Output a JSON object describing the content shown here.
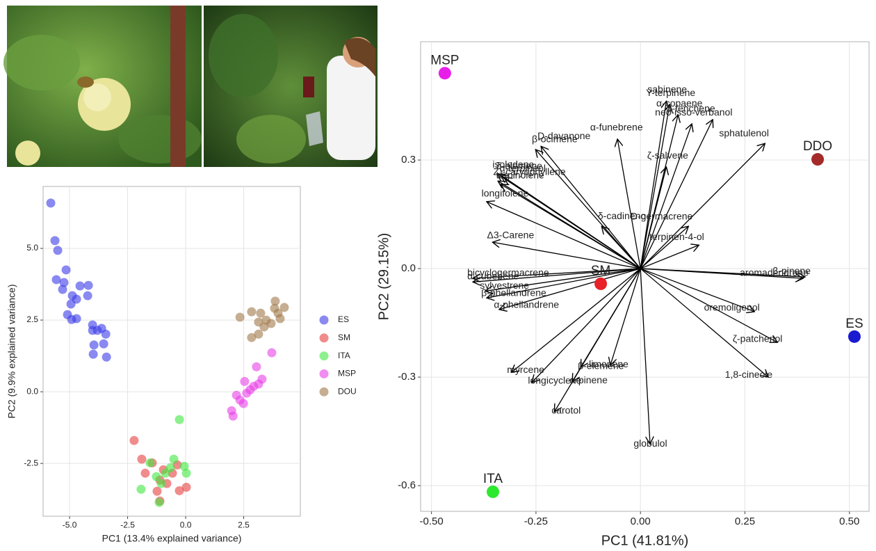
{
  "chart_data": [
    {
      "type": "scatter",
      "x_label": "PC1 (13.4% explained variance)",
      "y_label": "PC2 (9.9% explained variance)",
      "xlim": [
        -6.14,
        4.94
      ],
      "ylim": [
        -4.34,
        7.16
      ],
      "xticks": [
        {
          "value": -5,
          "label": "-5.0"
        },
        {
          "value": -2.5,
          "label": "-2.5"
        },
        {
          "value": 0,
          "label": "0.0"
        },
        {
          "value": 2.5,
          "label": "2.5"
        }
      ],
      "yticks": [
        {
          "value": -2.5,
          "label": "-2.5"
        },
        {
          "value": 0,
          "label": "0.0"
        },
        {
          "value": 2.5,
          "label": "2.5"
        },
        {
          "value": 5,
          "label": "5.0"
        }
      ],
      "grid": true,
      "series": [
        {
          "name": "ES",
          "color": "#3b3be8",
          "x": [
            -5.81,
            -5.63,
            -5.51,
            -5.57,
            -5.15,
            -5.24,
            -5.3,
            -4.88,
            -4.94,
            -5.09,
            -4.91,
            -4.7,
            -4.7,
            -4.55,
            -4.22,
            -4.19,
            -4.01,
            -4.01,
            -3.8,
            -3.62,
            -3.95,
            -3.53,
            -3.98,
            -3.44,
            -3.41
          ],
          "y": [
            6.58,
            5.27,
            4.93,
            3.91,
            4.25,
            3.81,
            3.57,
            3.35,
            3.06,
            2.69,
            2.52,
            2.55,
            3.23,
            3.69,
            3.35,
            3.71,
            2.33,
            2.14,
            2.14,
            2.21,
            1.63,
            1.67,
            1.31,
            2.01,
            1.21
          ]
        },
        {
          "name": "SM",
          "color": "#e84040",
          "x": [
            -2.22,
            -1.89,
            -1.74,
            -1.44,
            -1.23,
            -1.11,
            -0.81,
            -0.57,
            -0.27,
            0.03,
            -0.96,
            -0.36,
            -1.11
          ],
          "y": [
            -1.7,
            -2.35,
            -2.84,
            -2.48,
            -3.47,
            -3.08,
            -3.2,
            -2.84,
            -3.45,
            -3.33,
            -2.72,
            -2.55,
            -3.81
          ]
        },
        {
          "name": "ITA",
          "color": "#40e840",
          "x": [
            -0.27,
            -1.53,
            -1.92,
            -1.14,
            -0.87,
            -0.51,
            -0.06,
            0.03,
            -1.26,
            -0.66,
            -1.05
          ],
          "y": [
            -0.97,
            -2.48,
            -3.4,
            -3.86,
            -2.84,
            -2.35,
            -2.6,
            -2.84,
            -2.96,
            -2.65,
            -3.2
          ]
        },
        {
          "name": "MSP",
          "color": "#e840e8",
          "x": [
            3.71,
            3.05,
            3.29,
            2.54,
            2.78,
            2.19,
            1.98,
            2.04,
            2.34,
            2.63,
            2.93,
            3.14,
            2.49
          ],
          "y": [
            1.36,
            0.87,
            0.44,
            0.36,
            0.07,
            -0.12,
            -0.66,
            -0.85,
            -0.29,
            -0.05,
            0.19,
            0.27,
            -0.41
          ]
        },
        {
          "name": "DOU",
          "color": "#a0784a",
          "x": [
            2.34,
            2.84,
            3.23,
            3.47,
            3.86,
            3.83,
            4.25,
            4.07,
            3.68,
            3.38,
            3.14,
            2.84,
            3.98,
            3.14
          ],
          "y": [
            2.6,
            2.79,
            2.74,
            2.5,
            3.16,
            2.91,
            2.94,
            2.55,
            2.38,
            2.26,
            2.01,
            1.89,
            2.74,
            2.43
          ]
        }
      ]
    },
    {
      "type": "biplot",
      "x_label": "PC1 (41.81%)",
      "y_label": "PC2 (29.15%)",
      "xlim": [
        -0.526,
        0.547
      ],
      "ylim": [
        -0.671,
        0.627
      ],
      "xticks": [
        {
          "value": -0.5,
          "label": "-0.50"
        },
        {
          "value": -0.25,
          "label": "-0.25"
        },
        {
          "value": 0,
          "label": "0.00"
        },
        {
          "value": 0.25,
          "label": "0.25"
        },
        {
          "value": 0.5,
          "label": "0.50"
        }
      ],
      "yticks": [
        -0.6,
        -0.3,
        {
          "value": 0,
          "label": "0.0"
        },
        0.3
      ],
      "grid": true,
      "series": [
        {
          "name": "MSP",
          "color": "#e81ee8",
          "x": [
            -0.468
          ],
          "y": [
            0.54
          ]
        },
        {
          "name": "DDO",
          "color": "#a52a2a",
          "x": [
            0.424
          ],
          "y": [
            0.302
          ]
        },
        {
          "name": "SM",
          "color": "#e8202a",
          "x": [
            -0.095
          ],
          "y": [
            -0.042
          ]
        },
        {
          "name": "ES",
          "color": "#1a1ad0",
          "x": [
            0.512
          ],
          "y": [
            -0.188
          ]
        },
        {
          "name": "ITA",
          "color": "#2ee82e",
          "x": [
            -0.353
          ],
          "y": [
            -0.617
          ]
        }
      ],
      "loadings": [
        {
          "name": "sabinene",
          "x": 0.062,
          "y": 0.463
        },
        {
          "name": "Y-terpinene",
          "x": 0.07,
          "y": 0.454
        },
        {
          "name": "α-copaene",
          "x": 0.09,
          "y": 0.425
        },
        {
          "name": "neo-isso-verbanol",
          "x": 0.123,
          "y": 0.4
        },
        {
          "name": "α-fenchene",
          "x": 0.173,
          "y": 0.412
        },
        {
          "name": "sphatulenol",
          "x": 0.298,
          "y": 0.346
        },
        {
          "name": "D-davanone",
          "x": -0.238,
          "y": 0.338
        },
        {
          "name": "β-ocimene",
          "x": -0.251,
          "y": 0.329
        },
        {
          "name": "α-funebrene",
          "x": -0.055,
          "y": 0.358
        },
        {
          "name": "ζ-salvene",
          "x": 0.062,
          "y": 0.281
        },
        {
          "name": "isoledene",
          "x": -0.343,
          "y": 0.262
        },
        {
          "name": "δ-elemene",
          "x": -0.334,
          "y": 0.258
        },
        {
          "name": "α-terpineol",
          "x": -0.326,
          "y": 0.252
        },
        {
          "name": "Z)-caryophyllene",
          "x": -0.341,
          "y": 0.242
        },
        {
          "name": "terpinolene",
          "x": -0.334,
          "y": 0.233
        },
        {
          "name": "longifolene",
          "x": -0.368,
          "y": 0.185
        },
        {
          "name": "D-germacrene",
          "x": 0.115,
          "y": 0.117
        },
        {
          "name": "terpinen-4-ol",
          "x": 0.14,
          "y": 0.065
        },
        {
          "name": "δ-cadineno",
          "x": -0.093,
          "y": 0.117
        },
        {
          "name": "Δ3-Carene",
          "x": -0.354,
          "y": 0.073
        },
        {
          "name": "aromadendrene",
          "x": 0.389,
          "y": -0.027
        },
        {
          "name": "β-pinene",
          "x": 0.394,
          "y": -0.023
        },
        {
          "name": "oremoligenol",
          "x": 0.273,
          "y": -0.119
        },
        {
          "name": "ζ-patchenol",
          "x": 0.328,
          "y": -0.204
        },
        {
          "name": "1,8-cineole",
          "x": 0.306,
          "y": -0.3
        },
        {
          "name": "globulol",
          "x": 0.023,
          "y": -0.485
        },
        {
          "name": "carotol",
          "x": -0.206,
          "y": -0.396
        },
        {
          "name": "α-pinene",
          "x": -0.163,
          "y": -0.312
        },
        {
          "name": "β-elemene",
          "x": -0.143,
          "y": -0.273
        },
        {
          "name": "limonene",
          "x": -0.072,
          "y": -0.267
        },
        {
          "name": "longicyclene",
          "x": -0.26,
          "y": -0.315
        },
        {
          "name": "myrcene",
          "x": -0.309,
          "y": -0.287
        },
        {
          "name": "α-phellandrene",
          "x": -0.338,
          "y": -0.113
        },
        {
          "name": "β-phellandrene",
          "x": -0.368,
          "y": -0.081
        },
        {
          "name": "sylvestrene",
          "x": -0.371,
          "y": -0.062
        },
        {
          "name": "bicyclogermacrene",
          "x": -0.401,
          "y": -0.027
        },
        {
          "name": "α-cubebene",
          "x": -0.401,
          "y": -0.037
        }
      ]
    }
  ]
}
